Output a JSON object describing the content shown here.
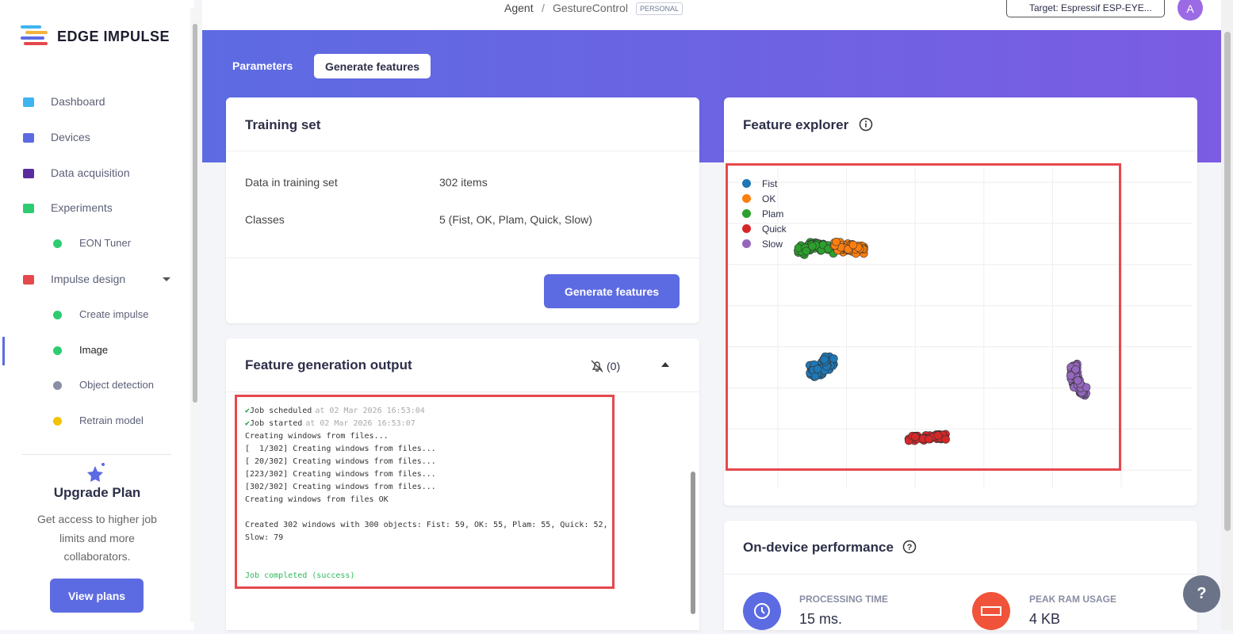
{
  "topbar": {
    "breadcrumb": [
      "Agent",
      "GestureControl"
    ],
    "badge": "PERSONAL",
    "target": "Target: Espressif ESP-EYE...",
    "avatar": "A"
  },
  "sidebar": {
    "brand": "EDGE IMPULSE",
    "nav": [
      "Dashboard",
      "Devices",
      "Data acquisition",
      "Experiments",
      "EON Tuner",
      "Impulse design",
      "Create impulse",
      "Image",
      "Object detection",
      "Retrain model"
    ],
    "upgrade": {
      "title": "Upgrade Plan",
      "text": "Get access to higher job limits and more collaborators.",
      "button": "View plans"
    }
  },
  "tabs": [
    "Parameters",
    "Generate features"
  ],
  "training_set": {
    "title": "Training set",
    "rows": [
      [
        "Data in training set",
        "302 items"
      ],
      [
        "Classes",
        "5 (Fist, OK, Plam, Quick, Slow)"
      ]
    ],
    "button": "Generate features"
  },
  "output": {
    "title": "Feature generation output",
    "notifications": "(0)",
    "log": [
      {
        "text": "Job scheduled",
        "time": "at 02 Mar 2026 16:53:04"
      },
      {
        "text": "Job started",
        "time": "at 02 Mar 2026 16:53:07"
      },
      "Creating windows from files...",
      "[  1/302] Creating windows from files...",
      "[ 20/302] Creating windows from files...",
      "[223/302] Creating windows from files...",
      "[302/302] Creating windows from files...",
      "Creating windows from files OK",
      "Created 302 windows with 300 objects: Fist: 59, OK: 55, Plam: 55, Quick: 52, Slow: 79"
    ],
    "status": "Job completed (success)"
  },
  "explorer": {
    "title": "Feature explorer",
    "legend": [
      {
        "name": "Fist",
        "color": "#1f77b4"
      },
      {
        "name": "OK",
        "color": "#ff7f0e"
      },
      {
        "name": "Plam",
        "color": "#2ca02c"
      },
      {
        "name": "Quick",
        "color": "#d62728"
      },
      {
        "name": "Slow",
        "color": "#9467bd"
      }
    ]
  },
  "performance": {
    "title": "On-device performance",
    "metrics": [
      {
        "label": "PROCESSING TIME",
        "value": "15 ms."
      },
      {
        "label": "PEAK RAM USAGE",
        "value": "4 KB"
      }
    ]
  }
}
